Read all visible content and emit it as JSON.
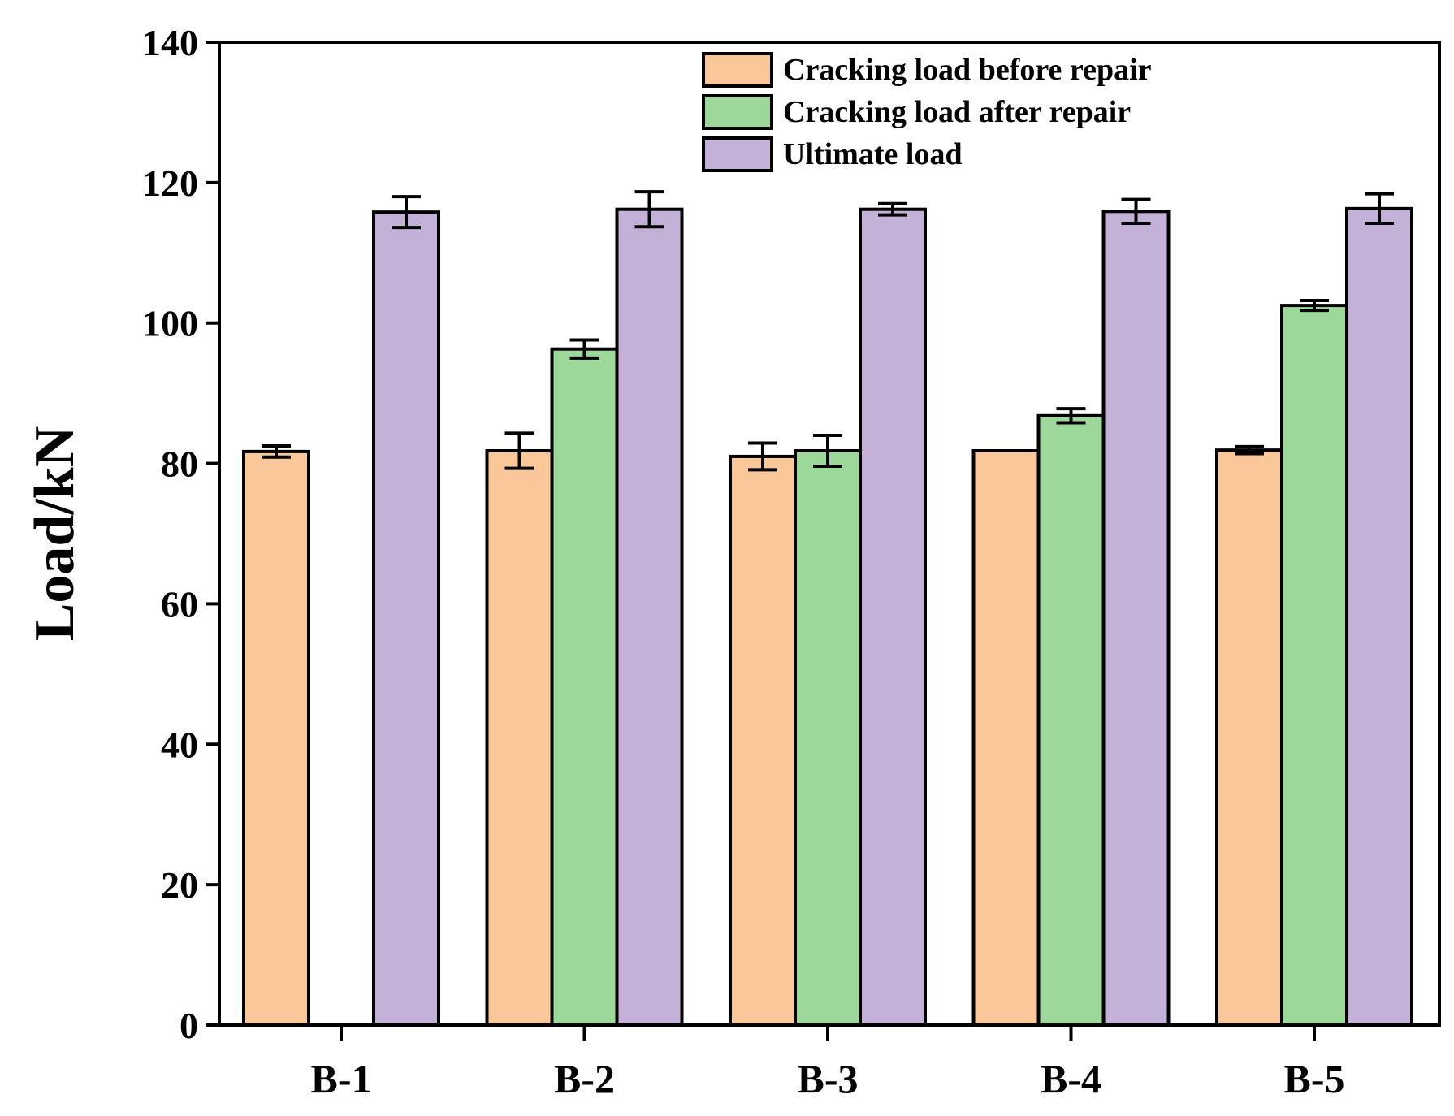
{
  "chart_data": {
    "type": "bar",
    "title": "",
    "xlabel": "",
    "ylabel": "Load/kN",
    "ylim": [
      0,
      140
    ],
    "yticks": [
      0,
      20,
      40,
      60,
      80,
      100,
      120,
      140
    ],
    "categories": [
      "B-1",
      "B-2",
      "B-3",
      "B-4",
      "B-5"
    ],
    "legend_position": "top-right",
    "series": [
      {
        "name": "Cracking load before repair",
        "color": "#FAC898",
        "values": [
          81.7,
          81.8,
          81.0,
          81.8,
          81.9
        ],
        "errors": [
          0.8,
          2.5,
          1.9,
          0.0,
          0.5
        ]
      },
      {
        "name": "Cracking load after repair",
        "color": "#9DD89B",
        "values": [
          null,
          96.3,
          81.8,
          86.8,
          102.5
        ],
        "errors": [
          null,
          1.3,
          2.2,
          1.0,
          0.7
        ]
      },
      {
        "name": "Ultimate load",
        "color": "#C3B1D8",
        "values": [
          115.8,
          116.2,
          116.2,
          115.9,
          116.3
        ],
        "errors": [
          2.2,
          2.5,
          0.8,
          1.7,
          2.1
        ]
      }
    ]
  }
}
